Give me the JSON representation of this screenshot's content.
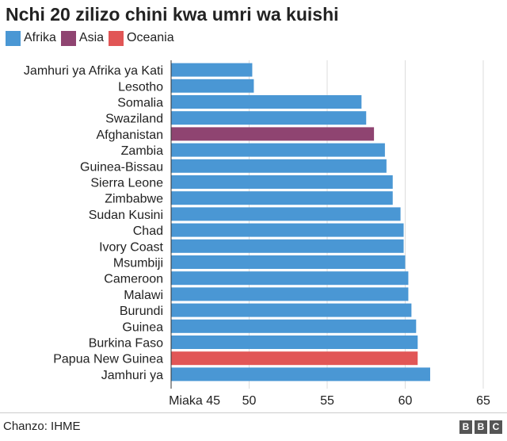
{
  "chart_data": {
    "type": "bar",
    "orientation": "horizontal",
    "title": "Nchi 20 zilizo chini kwa umri wa kuishi",
    "legend": [
      {
        "name": "Afrika",
        "color": "#4a97d4"
      },
      {
        "name": "Asia",
        "color": "#8f4471"
      },
      {
        "name": "Oceania",
        "color": "#e15656"
      }
    ],
    "legend_position": "top-left",
    "categories": [
      "Jamhuri ya Afrika ya Kati",
      "Lesotho",
      "Somalia",
      "Swaziland",
      "Afghanistan",
      "Zambia",
      "Guinea-Bissau",
      "Sierra Leone",
      "Zimbabwe",
      "Sudan Kusini",
      "Chad",
      "Ivory Coast",
      "Msumbiji",
      "Cameroon",
      "Malawi",
      "Burundi",
      "Guinea",
      "Burkina Faso",
      "Papua New Guinea",
      "Jamhuri ya"
    ],
    "values": [
      50.2,
      50.3,
      57.2,
      57.5,
      58.0,
      58.7,
      58.8,
      59.2,
      59.2,
      59.7,
      59.9,
      59.9,
      60.0,
      60.2,
      60.2,
      60.4,
      60.7,
      60.8,
      60.8,
      61.6
    ],
    "regions": [
      "Afrika",
      "Afrika",
      "Afrika",
      "Afrika",
      "Asia",
      "Afrika",
      "Afrika",
      "Afrika",
      "Afrika",
      "Afrika",
      "Afrika",
      "Afrika",
      "Afrika",
      "Afrika",
      "Afrika",
      "Afrika",
      "Afrika",
      "Afrika",
      "Oceania",
      "Afrika"
    ],
    "xlim": [
      45,
      65
    ],
    "ticks": [
      {
        "value": 45,
        "label": "Miaka 45"
      },
      {
        "value": 50,
        "label": "50"
      },
      {
        "value": 55,
        "label": "55"
      },
      {
        "value": 60,
        "label": "60"
      },
      {
        "value": 65,
        "label": "65"
      }
    ],
    "grid": true,
    "gridline_color": "#dddddd"
  },
  "footer": {
    "source": "Chanzo: IHME",
    "logo_letters": [
      "B",
      "B",
      "C"
    ]
  }
}
